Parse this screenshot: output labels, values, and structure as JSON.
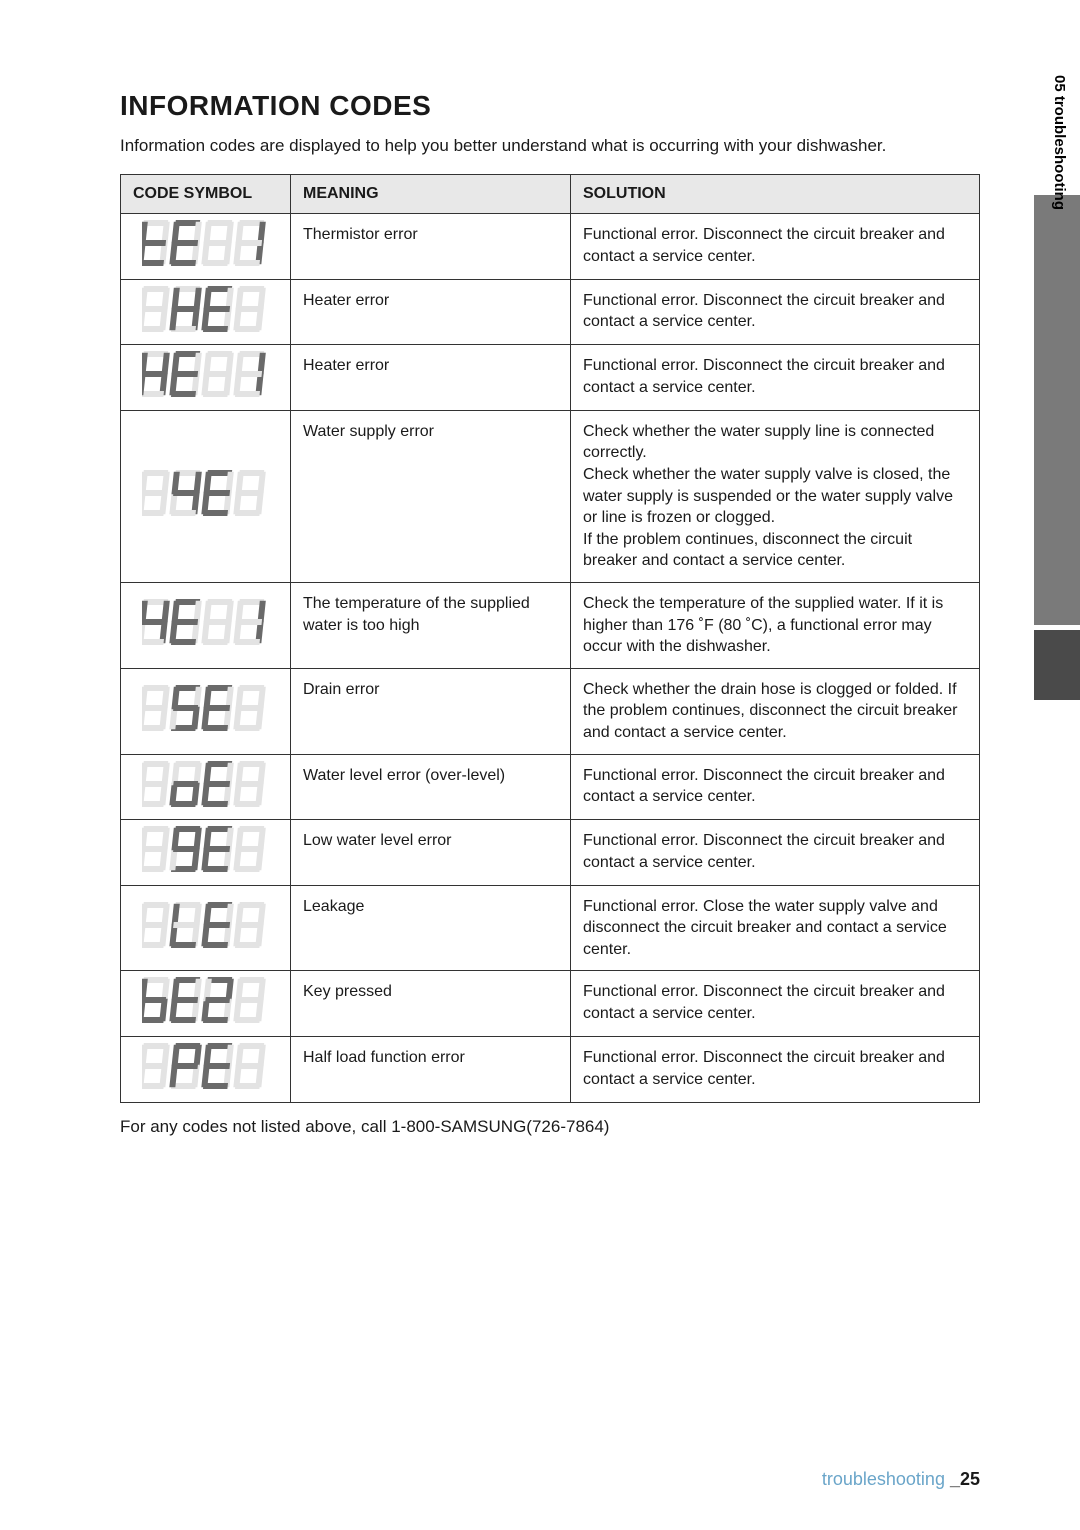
{
  "title": "INFORMATION CODES",
  "intro": "Information codes are displayed to help you better understand what is occurring with your dishwasher.",
  "table": {
    "headers": [
      "CODE SYMBOL",
      "MEANING",
      "SOLUTION"
    ],
    "rows": [
      {
        "meaning": "Thermistor error",
        "solution": "Functional error. Disconnect the circuit breaker and contact a service center.",
        "code": "tE1",
        "seg": [
          "t",
          "E",
          "_",
          "1"
        ]
      },
      {
        "meaning": "Heater error",
        "solution": "Functional error. Disconnect the circuit breaker and contact a service center.",
        "code": "HE",
        "seg": [
          "_",
          "H",
          "E",
          "_"
        ]
      },
      {
        "meaning": "Heater error",
        "solution": "Functional error. Disconnect the circuit breaker and contact a service center.",
        "code": "HE1",
        "seg": [
          "H",
          "E",
          "_",
          "1"
        ]
      },
      {
        "meaning": "Water supply error",
        "solution": "Check whether the water supply line is connected correctly.\nCheck whether the water supply valve is closed, the water supply is suspended or the water supply valve or line is frozen or clogged.\nIf the problem continues, disconnect the circuit breaker and contact a service center.",
        "code": "4E",
        "seg": [
          "_",
          "4",
          "E",
          "_"
        ]
      },
      {
        "meaning": "The temperature of the supplied water is too high",
        "solution": "Check the temperature of the supplied water. If it is higher than 176 ˚F (80 ˚C), a functional error may occur with the dishwasher.",
        "code": "4E1",
        "seg": [
          "4",
          "E",
          "_",
          "1"
        ]
      },
      {
        "meaning": "Drain error",
        "solution": "Check whether the drain hose is clogged or folded. If the problem continues, disconnect the circuit breaker and contact a service center.",
        "code": "5E",
        "seg": [
          "_",
          "5",
          "E",
          "_"
        ]
      },
      {
        "meaning": "Water level error (over-level)",
        "solution": "Functional error. Disconnect the circuit breaker and contact a service center.",
        "code": "oE",
        "seg": [
          "_",
          "o",
          "E",
          "_"
        ]
      },
      {
        "meaning": "Low water level error",
        "solution": "Functional error. Disconnect the circuit breaker and contact a service center.",
        "code": "9E",
        "seg": [
          "_",
          "9",
          "E",
          "_"
        ]
      },
      {
        "meaning": "Leakage",
        "solution": "Functional error. Close the water supply valve and disconnect the circuit breaker and contact a service center.",
        "code": "LE",
        "seg": [
          "_",
          "L",
          "E",
          "_"
        ]
      },
      {
        "meaning": "Key pressed",
        "solution": "Functional error. Disconnect the circuit breaker and contact a service center.",
        "code": "bE2",
        "seg": [
          "b",
          "E",
          "2",
          "_"
        ]
      },
      {
        "meaning": "Half load function error",
        "solution": "Functional error. Disconnect the circuit breaker and contact a service center.",
        "code": "PE",
        "seg": [
          "_",
          "P",
          "E",
          "_"
        ]
      }
    ]
  },
  "footer_note": "For any codes not listed above, call 1-800-SAMSUNG(726-7864)",
  "side_tab_text": "05 troubleshooting",
  "page_footer": {
    "section": "troubleshooting ",
    "page": "_25"
  },
  "seg_style": {
    "on_color": "#6a6a6a",
    "off_color": "#e3e3e3",
    "digit_w": 28,
    "digit_h": 46,
    "stroke_w": 6,
    "gap": 4
  }
}
